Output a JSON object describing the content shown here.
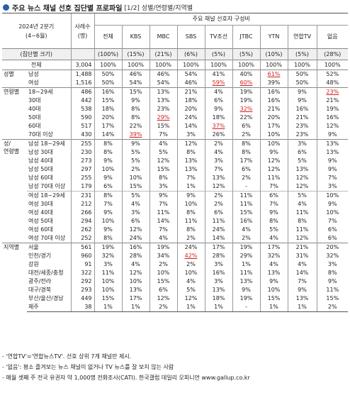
{
  "title": "주요 뉴스 채널 선호 집단별 프로파일",
  "title_sub": "[1/2] 성별/연령별/지역별",
  "header": {
    "period_line1": "2024년 2분기",
    "period_line2": "(4~6월)",
    "sample_label": "사례수",
    "sample_unit": "(명)",
    "group_label": "(집단별 크기)",
    "composition_label": "주요 채널 선호자 구성비",
    "channels": [
      "전체",
      "KBS",
      "MBC",
      "SBS",
      "TV조선",
      "JTBC",
      "YTN",
      "연합TV",
      "없음"
    ],
    "group_sizes": [
      "(100%)",
      "(15%)",
      "(21%)",
      "(6%)",
      "(5%)",
      "(5%)",
      "(10%)",
      "(5%)",
      "(28%)"
    ]
  },
  "total": {
    "label": "전체",
    "n": "3,004",
    "values": [
      "100%",
      "100%",
      "100%",
      "100%",
      "100%",
      "100%",
      "100%",
      "100%",
      "100%"
    ]
  },
  "sections": [
    {
      "name": "성별",
      "rows": [
        {
          "label": "남성",
          "n": "1,488",
          "values": [
            "50%",
            "46%",
            "46%",
            "54%",
            "41%",
            "40%",
            "61%",
            "50%",
            "52%"
          ],
          "hl": [
            6
          ]
        },
        {
          "label": "여성",
          "n": "1,516",
          "values": [
            "50%",
            "54%",
            "54%",
            "46%",
            "59%",
            "60%",
            "39%",
            "50%",
            "48%"
          ],
          "hl": [
            4,
            5
          ]
        }
      ]
    },
    {
      "name": "연령별",
      "rows": [
        {
          "label": "18~29세",
          "n": "486",
          "values": [
            "16%",
            "15%",
            "13%",
            "21%",
            "4%",
            "19%",
            "16%",
            "9%",
            "23%"
          ],
          "hl": [
            8
          ]
        },
        {
          "label": "30대",
          "n": "442",
          "values": [
            "15%",
            "9%",
            "13%",
            "18%",
            "6%",
            "19%",
            "16%",
            "9%",
            "21%"
          ],
          "hl": []
        },
        {
          "label": "40대",
          "n": "538",
          "values": [
            "18%",
            "8%",
            "23%",
            "20%",
            "9%",
            "32%",
            "21%",
            "16%",
            "19%"
          ],
          "hl": [
            5
          ]
        },
        {
          "label": "50대",
          "n": "590",
          "values": [
            "20%",
            "8%",
            "29%",
            "24%",
            "18%",
            "22%",
            "20%",
            "21%",
            "16%"
          ],
          "hl": [
            2
          ]
        },
        {
          "label": "60대",
          "n": "517",
          "values": [
            "17%",
            "22%",
            "15%",
            "14%",
            "37%",
            "6%",
            "17%",
            "23%",
            "12%"
          ],
          "hl": [
            4
          ]
        },
        {
          "label": "70대 이상",
          "n": "430",
          "values": [
            "14%",
            "39%",
            "7%",
            "3%",
            "26%",
            "2%",
            "10%",
            "23%",
            "9%"
          ],
          "hl": [
            1
          ]
        }
      ]
    },
    {
      "name": "성/\n연령별",
      "rows": [
        {
          "label": "남성 18~29세",
          "n": "255",
          "values": [
            "8%",
            "9%",
            "4%",
            "12%",
            "2%",
            "8%",
            "10%",
            "3%",
            "13%"
          ],
          "hl": []
        },
        {
          "label": "남성 30대",
          "n": "230",
          "values": [
            "8%",
            "5%",
            "5%",
            "8%",
            "4%",
            "8%",
            "9%",
            "6%",
            "13%"
          ],
          "hl": []
        },
        {
          "label": "남성 40대",
          "n": "273",
          "values": [
            "9%",
            "5%",
            "12%",
            "13%",
            "3%",
            "17%",
            "12%",
            "5%",
            "9%"
          ],
          "hl": []
        },
        {
          "label": "남성 50대",
          "n": "297",
          "values": [
            "10%",
            "2%",
            "15%",
            "13%",
            "7%",
            "6%",
            "12%",
            "13%",
            "9%"
          ],
          "hl": []
        },
        {
          "label": "남성 60대",
          "n": "255",
          "values": [
            "9%",
            "10%",
            "8%",
            "7%",
            "13%",
            "2%",
            "11%",
            "12%",
            "7%"
          ],
          "hl": []
        },
        {
          "label": "남성 70대 이상",
          "n": "179",
          "values": [
            "6%",
            "15%",
            "3%",
            "1%",
            "12%",
            "-",
            "7%",
            "12%",
            "3%"
          ],
          "hl": []
        },
        {
          "label": "여성 18~29세",
          "n": "231",
          "values": [
            "8%",
            "5%",
            "9%",
            "9%",
            "2%",
            "11%",
            "6%",
            "5%",
            "10%"
          ],
          "hl": []
        },
        {
          "label": "여성 30대",
          "n": "212",
          "values": [
            "7%",
            "4%",
            "7%",
            "10%",
            "2%",
            "11%",
            "7%",
            "4%",
            "9%"
          ],
          "hl": []
        },
        {
          "label": "여성 40대",
          "n": "266",
          "values": [
            "9%",
            "3%",
            "11%",
            "8%",
            "6%",
            "15%",
            "9%",
            "11%",
            "10%"
          ],
          "hl": []
        },
        {
          "label": "여성 50대",
          "n": "294",
          "values": [
            "10%",
            "6%",
            "14%",
            "11%",
            "11%",
            "16%",
            "8%",
            "8%",
            "7%"
          ],
          "hl": []
        },
        {
          "label": "여성 60대",
          "n": "262",
          "values": [
            "9%",
            "12%",
            "7%",
            "8%",
            "24%",
            "4%",
            "5%",
            "11%",
            "6%"
          ],
          "hl": []
        },
        {
          "label": "여성 70대 이상",
          "n": "252",
          "values": [
            "8%",
            "24%",
            "4%",
            "2%",
            "14%",
            "2%",
            "4%",
            "12%",
            "6%"
          ],
          "hl": []
        }
      ]
    },
    {
      "name": "지역별",
      "rows": [
        {
          "label": "서울",
          "n": "561",
          "values": [
            "19%",
            "16%",
            "19%",
            "24%",
            "17%",
            "19%",
            "17%",
            "21%",
            "20%"
          ],
          "hl": []
        },
        {
          "label": "인천/경기",
          "n": "960",
          "values": [
            "32%",
            "28%",
            "34%",
            "42%",
            "28%",
            "29%",
            "32%",
            "31%",
            "32%"
          ],
          "hl": [
            3
          ]
        },
        {
          "label": "강원",
          "n": "91",
          "values": [
            "3%",
            "4%",
            "2%",
            "2%",
            "3%",
            "1%",
            "4%",
            "4%",
            "3%"
          ],
          "hl": []
        },
        {
          "label": "대전/세종/충청",
          "n": "322",
          "values": [
            "11%",
            "12%",
            "10%",
            "10%",
            "16%",
            "11%",
            "13%",
            "14%",
            "8%"
          ],
          "hl": []
        },
        {
          "label": "광주/전라",
          "n": "292",
          "values": [
            "10%",
            "10%",
            "15%",
            "4%",
            "3%",
            "13%",
            "9%",
            "7%",
            "9%"
          ],
          "hl": []
        },
        {
          "label": "대구/경북",
          "n": "293",
          "values": [
            "10%",
            "13%",
            "6%",
            "5%",
            "13%",
            "9%",
            "10%",
            "9%",
            "11%"
          ],
          "hl": []
        },
        {
          "label": "부산/울산/경남",
          "n": "449",
          "values": [
            "15%",
            "17%",
            "12%",
            "12%",
            "18%",
            "19%",
            "15%",
            "13%",
            "15%"
          ],
          "hl": []
        },
        {
          "label": "제주",
          "n": "38",
          "values": [
            "1%",
            "1%",
            "2%",
            "1%",
            "1%",
            "-",
            "1%",
            "1%",
            "2%"
          ],
          "hl": []
        }
      ]
    }
  ],
  "notes": [
    "- '연합TV'='연합뉴스TV'. 선호 상위 7개 채널만 제시.",
    "- '없음': 평소 즐겨보는 뉴스 채널이 없거나 TV 뉴스를 잘 보지 않는 사람",
    "- 매월 셋째 주 전국 유권자 약 1,000명 전화조사(CATI). 한국갤럽 데일리 오피니언 www.gallup.co.kr"
  ],
  "colors": {
    "accent": "#2a5fa8",
    "highlight": "#d21f1f",
    "grid": "#999999"
  }
}
